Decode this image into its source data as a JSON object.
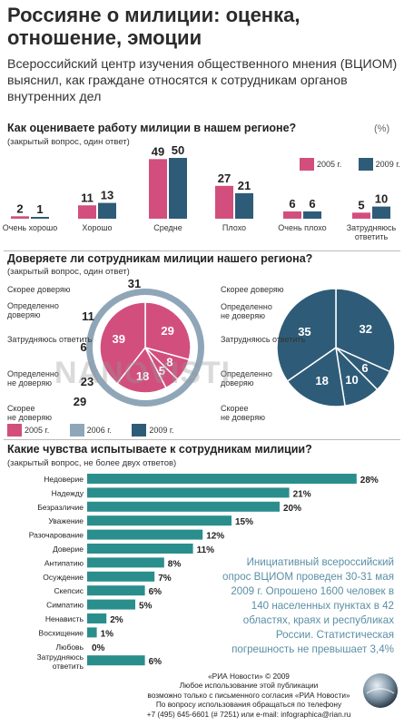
{
  "title": "Россияне о милиции: оценка, отношение, эмоции",
  "subtitle": "Всероссийский центр изучения общественного мнения (ВЦИОМ) выяснил, как граждане относятся к сотрудникам органов внутренних дел",
  "colors": {
    "y2005": "#d24f7d",
    "y2006": "#8fa6b8",
    "y2009": "#2e5c78",
    "teal": "#2a8e8c",
    "info": "#5a8fa6"
  },
  "section1": {
    "question": "Как оцениваете работу милиции в нашем регионе?",
    "note": "(закрытый вопрос, один ответ)",
    "unit": "(%)",
    "legend": [
      "2005 г.",
      "2009 г."
    ]
  },
  "section2": {
    "question": "Доверяете ли сотрудникам милиции нашего региона?",
    "note": "(закрытый вопрос, один ответ)",
    "legend": [
      "2005 г.",
      "2006 г.",
      "2009 г."
    ],
    "left_labels": [
      "Скорее доверяю",
      "Определенно доверяю",
      "Затрудняюсь ответить",
      "Определенно не доверяю",
      "Скорее не доверяю"
    ],
    "right_labels": [
      "Скорее доверяю",
      "Определенно не доверяю",
      "Затрудняюсь ответить",
      "Определенно доверяю",
      "Скорее не доверяю"
    ]
  },
  "section3": {
    "question": "Какие чувства испытываете к сотрудникам милиции?",
    "note": "(закрытый вопрос, не более двух ответов)"
  },
  "info": "Инициативный всероссийский опрос ВЦИОМ проведен 30-31 мая 2009 г. Опрошено 1600 человек в 140 населенных пунктах в 42 областях, краях и республиках России. Статистическая погрешность не превышает 3,4%",
  "footer": [
    "«РИА Новости» © 2009",
    "Любое использование этой публикации",
    "возможно только с письменного согласия «РИА Новости»",
    "По вопросу использования обращаться по телефону",
    "+7 (495) 645-6601 (# 7251) или e-mail: infographica@rian.ru"
  ],
  "watermark": "NANOVISTI",
  "chart_data": [
    {
      "type": "bar",
      "title": "Как оцениваете работу милиции в нашем регионе?",
      "categories": [
        "Очень хорошо",
        "Хорошо",
        "Средне",
        "Плохо",
        "Очень плохо",
        "Затрудняюсь ответить"
      ],
      "series": [
        {
          "name": "2005 г.",
          "values": [
            2,
            11,
            49,
            27,
            6,
            5
          ]
        },
        {
          "name": "2009 г.",
          "values": [
            1,
            13,
            50,
            21,
            6,
            10
          ]
        }
      ],
      "ylabel": "(%)"
    },
    {
      "type": "pie",
      "title": "Доверяете ли сотрудникам милиции нашего региона?",
      "series": [
        {
          "name": "2005 г.",
          "categories": [
            "Скорее доверяю",
            "Определенно доверяю",
            "Затрудняюсь ответить",
            "Определенно не доверяю",
            "Скорее не доверяю"
          ],
          "values": [
            29,
            8,
            5,
            18,
            39
          ]
        },
        {
          "name": "2006 г.",
          "categories": [
            "Скорее доверяю",
            "Определенно доверяю",
            "Затрудняюсь ответить",
            "Определенно не доверяю",
            "Скорее не доверяю"
          ],
          "values": [
            31,
            11,
            6,
            23,
            29
          ]
        },
        {
          "name": "2009 г.",
          "categories": [
            "Скорее доверяю",
            "Определенно доверяю",
            "Затрудняюсь ответить",
            "Определенно не доверяю",
            "Скорее не доверяю"
          ],
          "values": [
            32,
            6,
            10,
            18,
            35
          ]
        }
      ]
    },
    {
      "type": "bar",
      "title": "Какие чувства испытываете к сотрудникам милиции?",
      "categories": [
        "Недоверие",
        "Надежду",
        "Безразличие",
        "Уважение",
        "Разочарование",
        "Доверие",
        "Антипатию",
        "Осуждение",
        "Скепсис",
        "Симпатию",
        "Ненависть",
        "Восхищение",
        "Любовь",
        "Затрудняюсь ответить"
      ],
      "values": [
        28,
        21,
        20,
        15,
        12,
        11,
        8,
        7,
        6,
        5,
        2,
        1,
        0,
        6
      ],
      "value_labels": [
        "28%",
        "21%",
        "20%",
        "15%",
        "12%",
        "11%",
        "8%",
        "7%",
        "6%",
        "5%",
        "2%",
        "1%",
        "0%",
        "6%"
      ]
    }
  ]
}
